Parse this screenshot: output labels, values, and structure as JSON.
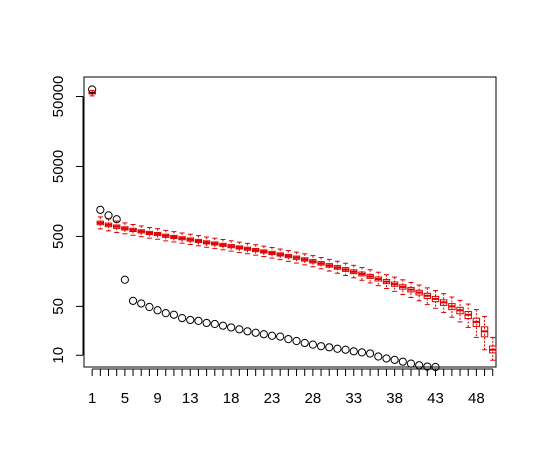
{
  "chart_data": {
    "type": "scatter",
    "title": "",
    "xlabel": "",
    "ylabel": "",
    "x_axis": {
      "range": [
        0,
        50.4
      ],
      "ticks": [
        1,
        2,
        3,
        4,
        5,
        6,
        7,
        8,
        9,
        10,
        11,
        12,
        13,
        14,
        15,
        16,
        17,
        18,
        19,
        20,
        21,
        22,
        23,
        24,
        25,
        26,
        27,
        28,
        29,
        30,
        31,
        32,
        33,
        34,
        35,
        36,
        37,
        38,
        39,
        40,
        41,
        42,
        43,
        44,
        45,
        46,
        47,
        48,
        49,
        50
      ],
      "tick_labels": [
        "1",
        "5",
        "9",
        "13",
        "18",
        "23",
        "28",
        "33",
        "38",
        "43",
        "48"
      ],
      "tick_label_positions": [
        1,
        5,
        9,
        13,
        18,
        23,
        28,
        33,
        38,
        43,
        48
      ]
    },
    "y_axis": {
      "scale": "log",
      "range": [
        6.8,
        95000
      ],
      "ticks": [
        10,
        50,
        500,
        5000,
        50000
      ],
      "tick_labels": [
        "10",
        "50",
        "500",
        "5000",
        "50000"
      ]
    },
    "colors": {
      "circles": "#000000",
      "boxes": "#dd0000",
      "axes": "#000000"
    },
    "series": [
      {
        "marker": "open-circle",
        "x": [
          1,
          2,
          3,
          4,
          5,
          6,
          7,
          8,
          9,
          10,
          11,
          12,
          13,
          14,
          15,
          16,
          17,
          18,
          19,
          20,
          21,
          22,
          23,
          24,
          25,
          26,
          27,
          28,
          29,
          30,
          31,
          32,
          33,
          34,
          35,
          36,
          37,
          38,
          39,
          40,
          41,
          42,
          43
        ],
        "y": [
          63000,
          1200,
          1000,
          880,
          120,
          60,
          55,
          49,
          44,
          40,
          38,
          34,
          32,
          31,
          29,
          28,
          26.5,
          25,
          23.5,
          22,
          21,
          20,
          19,
          18.5,
          17,
          16,
          15,
          14.2,
          13.5,
          13,
          12.4,
          12,
          11.4,
          11,
          10.6,
          9.6,
          9,
          8.6,
          8.1,
          7.6,
          7.2,
          6.9,
          6.8
        ]
      },
      {
        "marker": "box",
        "x": [
          1,
          2,
          3,
          4,
          5,
          6,
          7,
          8,
          9,
          10,
          11,
          12,
          13,
          14,
          15,
          16,
          17,
          18,
          19,
          20,
          21,
          22,
          23,
          24,
          25,
          26,
          27,
          28,
          29,
          30,
          31,
          32,
          33,
          34,
          35,
          36,
          37,
          38,
          39,
          40,
          41,
          42,
          43,
          44,
          45,
          46,
          47,
          48,
          49,
          50
        ],
        "median": [
          56000,
          780,
          730,
          690,
          650,
          620,
          590,
          560,
          540,
          510,
          490,
          470,
          450,
          430,
          410,
          395,
          378,
          362,
          347,
          333,
          318,
          304,
          290,
          276,
          262,
          248,
          234,
          220,
          206,
          192,
          180,
          168,
          156,
          145,
          134,
          123,
          113,
          104,
          95,
          87,
          79,
          71,
          64,
          57,
          50,
          44,
          38,
          30,
          22,
          12
        ],
        "whisker_low": [
          51000,
          640,
          600,
          570,
          545,
          520,
          496,
          472,
          456,
          432,
          416,
          400,
          383,
          367,
          350,
          337,
          322,
          308,
          295,
          283,
          270,
          258,
          245,
          233,
          220,
          208,
          196,
          184,
          172,
          160,
          149,
          138,
          128,
          118,
          108,
          99,
          90,
          82,
          74,
          67,
          60,
          53,
          47,
          41,
          35,
          30,
          25,
          18,
          12,
          8.5
        ],
        "whisker_high": [
          61000,
          950,
          890,
          830,
          780,
          740,
          705,
          670,
          645,
          610,
          585,
          560,
          538,
          514,
          490,
          472,
          452,
          433,
          415,
          398,
          380,
          363,
          347,
          330,
          314,
          298,
          282,
          266,
          250,
          235,
          221,
          207,
          193,
          180,
          167,
          154,
          142,
          131,
          120,
          110,
          101,
          92,
          84,
          76,
          68,
          61,
          54,
          45,
          36,
          18
        ]
      }
    ]
  }
}
